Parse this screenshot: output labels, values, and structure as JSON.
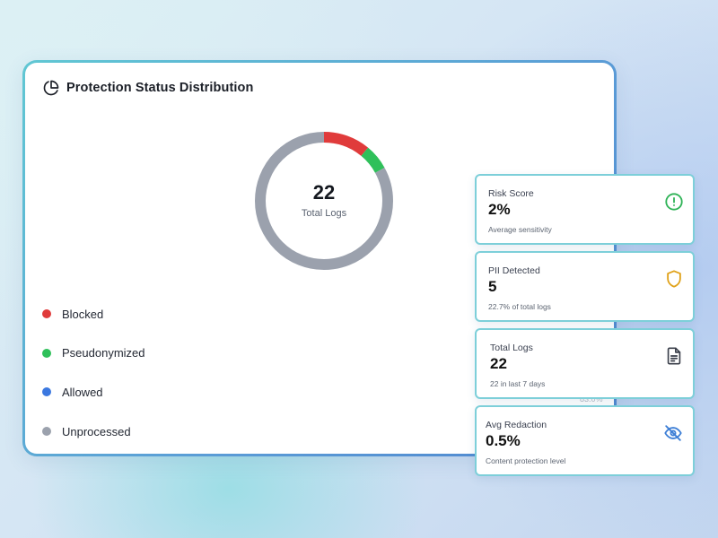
{
  "main_card": {
    "title": "Protection Status Distribution",
    "icon": "pie-chart-icon",
    "donut": {
      "value": "22",
      "label": "Total Logs",
      "segments": [
        {
          "name": "Blocked",
          "fraction": 0.11,
          "color": "#e03b3b"
        },
        {
          "name": "Pseudonymized",
          "fraction": 0.06,
          "color": "#2fc05a"
        },
        {
          "name": "Unprocessed",
          "fraction": 0.83,
          "color": "#9ba1ad"
        }
      ]
    },
    "legend": [
      {
        "label": "Blocked",
        "color": "#e03b3b"
      },
      {
        "label": "Pseudonymized",
        "color": "#2fc05a"
      },
      {
        "label": "Allowed",
        "color": "#3b78e0"
      },
      {
        "label": "Unprocessed",
        "color": "#9ba1ad"
      }
    ],
    "faint_text": "83.0%"
  },
  "stats": [
    {
      "label": "Risk Score",
      "value": "2%",
      "sub": "Average sensitivity",
      "icon": "alert-circle-icon",
      "icon_color": "#2fb357"
    },
    {
      "label": "PII Detected",
      "value": "5",
      "sub": "22.7% of total logs",
      "icon": "shield-icon",
      "icon_color": "#e0a21a"
    },
    {
      "label": "Total Logs",
      "value": "22",
      "sub": "22 in last 7 days",
      "icon": "document-icon",
      "icon_color": "#3a3f4a"
    },
    {
      "label": "Avg Redaction",
      "value": "0.5%",
      "sub": "Content protection level",
      "icon": "eye-off-icon",
      "icon_color": "#3e7fd6"
    }
  ]
}
